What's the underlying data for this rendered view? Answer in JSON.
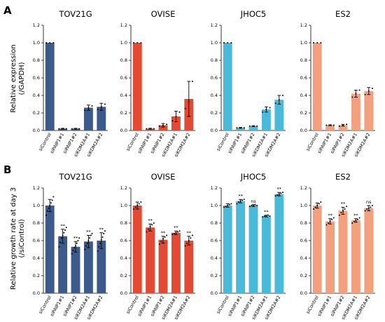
{
  "panels": [
    {
      "letter": "A",
      "ylabel_lines": [
        "Relative expression",
        "(/GAPDH)"
      ]
    },
    {
      "letter": "B",
      "ylabel_lines": [
        "Relative growth rate at day 3",
        "(/siControl)"
      ]
    }
  ],
  "chart_data": [
    {
      "type": "bar",
      "title": "TOV21G",
      "color": "#3d5a8c",
      "row": 0,
      "categories": [
        "siControl",
        "siPAIP1#1",
        "siPAIP1#2",
        "siKDM2A#1",
        "siKDM2A#2"
      ],
      "values": [
        1.0,
        0.02,
        0.02,
        0.26,
        0.27
      ],
      "errors": [
        0.0,
        0.005,
        0.005,
        0.03,
        0.04
      ],
      "points": [
        [
          1.0,
          1.0,
          1.0
        ],
        [
          0.02,
          0.02,
          0.02
        ],
        [
          0.02,
          0.02,
          0.02
        ],
        [
          0.23,
          0.26,
          0.28
        ],
        [
          0.24,
          0.27,
          0.3
        ]
      ],
      "annotations": [
        "",
        "",
        "",
        "",
        ""
      ],
      "ylim": [
        0,
        1.2
      ],
      "yticks": [
        "0.0",
        "0.2",
        "0.4",
        "0.6",
        "0.8",
        "1.0",
        "1.2"
      ]
    },
    {
      "type": "bar",
      "title": "OVISE",
      "color": "#e24a33",
      "row": 0,
      "categories": [
        "siControl",
        "siPAIP1#1",
        "siPAIP1#2",
        "siKDM2A#1",
        "siKDM2A#2"
      ],
      "values": [
        1.0,
        0.02,
        0.06,
        0.16,
        0.36
      ],
      "errors": [
        0.0,
        0.005,
        0.02,
        0.06,
        0.2
      ],
      "points": [
        [
          1.0,
          1.0,
          1.0
        ],
        [
          0.02,
          0.02,
          0.02
        ],
        [
          0.05,
          0.06,
          0.07
        ],
        [
          0.11,
          0.16,
          0.21
        ],
        [
          0.25,
          0.33,
          0.56
        ]
      ],
      "annotations": [
        "",
        "",
        "",
        "",
        ""
      ],
      "ylim": [
        0,
        1.2
      ],
      "yticks": [
        "0.0",
        "0.2",
        "0.4",
        "0.6",
        "0.8",
        "1.0",
        "1.2"
      ]
    },
    {
      "type": "bar",
      "title": "JHOC5",
      "color": "#4bbad8",
      "row": 0,
      "categories": [
        "siControl",
        "siPAIP1#1",
        "siPAIP1#2",
        "siKDM2A#1",
        "siKDM2A#2"
      ],
      "values": [
        1.0,
        0.03,
        0.05,
        0.24,
        0.35
      ],
      "errors": [
        0.0,
        0.005,
        0.005,
        0.03,
        0.05
      ],
      "points": [
        [
          1.0,
          1.0,
          1.0
        ],
        [
          0.03,
          0.03,
          0.03
        ],
        [
          0.05,
          0.05,
          0.05
        ],
        [
          0.21,
          0.24,
          0.26
        ],
        [
          0.31,
          0.35,
          0.4
        ]
      ],
      "annotations": [
        "",
        "",
        "",
        "",
        ""
      ],
      "ylim": [
        0,
        1.2
      ],
      "yticks": [
        "0.0",
        "0.2",
        "0.4",
        "0.6",
        "0.8",
        "1.0",
        "1.2"
      ]
    },
    {
      "type": "bar",
      "title": "ES2",
      "color": "#f2a07e",
      "row": 0,
      "categories": [
        "siControl",
        "siPAIP1#1",
        "siPAIP1#2",
        "siKDM2A#1",
        "siKDM2A#2"
      ],
      "values": [
        1.0,
        0.06,
        0.06,
        0.42,
        0.45
      ],
      "errors": [
        0.0,
        0.005,
        0.01,
        0.04,
        0.04
      ],
      "points": [
        [
          1.0,
          1.0,
          1.0
        ],
        [
          0.06,
          0.06,
          0.06
        ],
        [
          0.05,
          0.06,
          0.07
        ],
        [
          0.38,
          0.42,
          0.46
        ],
        [
          0.41,
          0.45,
          0.48
        ]
      ],
      "annotations": [
        "",
        "",
        "",
        "",
        ""
      ],
      "ylim": [
        0,
        1.2
      ],
      "yticks": [
        "0.0",
        "0.2",
        "0.4",
        "0.6",
        "0.8",
        "1.0",
        "1.2"
      ]
    },
    {
      "type": "bar",
      "title": "TOV21G",
      "color": "#3d5a8c",
      "row": 1,
      "categories": [
        "siControl",
        "siPAIP1#1",
        "siPAIP1#2",
        "siKDM2A#1",
        "siKDM2A#2"
      ],
      "values": [
        1.0,
        0.65,
        0.53,
        0.59,
        0.6
      ],
      "errors": [
        0.07,
        0.08,
        0.06,
        0.07,
        0.09
      ],
      "points": [
        [
          0.89,
          0.94,
          0.97,
          1.0,
          1.03,
          1.06,
          1.1
        ],
        [
          0.53,
          0.58,
          0.63,
          0.66,
          0.69,
          0.72,
          0.75
        ],
        [
          0.45,
          0.49,
          0.52,
          0.54,
          0.57,
          0.6,
          0.63
        ],
        [
          0.5,
          0.54,
          0.57,
          0.6,
          0.63,
          0.66,
          0.68
        ],
        [
          0.48,
          0.53,
          0.57,
          0.61,
          0.64,
          0.68,
          0.71
        ]
      ],
      "annotations": [
        "",
        "**",
        "**",
        "**",
        "**"
      ],
      "ylim": [
        0,
        1.2
      ],
      "yticks": [
        "0.0",
        "0.2",
        "0.4",
        "0.6",
        "0.8",
        "1.0",
        "1.2"
      ]
    },
    {
      "type": "bar",
      "title": "OVISE",
      "color": "#e24a33",
      "row": 1,
      "categories": [
        "siControl",
        "siPAIP1#1",
        "siPAIP1#2",
        "siKDM2A#1",
        "siKDM2A#2"
      ],
      "values": [
        1.0,
        0.75,
        0.61,
        0.69,
        0.6
      ],
      "errors": [
        0.04,
        0.04,
        0.04,
        0.02,
        0.05
      ],
      "points": [
        [
          0.96,
          0.98,
          1.0,
          1.02,
          1.04
        ],
        [
          0.7,
          0.73,
          0.76,
          0.78,
          0.8
        ],
        [
          0.56,
          0.59,
          0.62,
          0.64,
          0.66
        ],
        [
          0.67,
          0.68,
          0.69,
          0.7,
          0.71
        ],
        [
          0.54,
          0.57,
          0.6,
          0.63,
          0.66
        ]
      ],
      "annotations": [
        "",
        "**",
        "**",
        "**",
        "**"
      ],
      "ylim": [
        0,
        1.2
      ],
      "yticks": [
        "0.0",
        "0.2",
        "0.4",
        "0.6",
        "0.8",
        "1.0",
        "1.2"
      ]
    },
    {
      "type": "bar",
      "title": "JHOC5",
      "color": "#4bbad8",
      "row": 1,
      "categories": [
        "siControl",
        "siPAIP1#1",
        "siPAIP1#2",
        "siKDM2A#1",
        "siKDM2A#2"
      ],
      "values": [
        1.0,
        1.05,
        1.0,
        0.88,
        1.13
      ],
      "errors": [
        0.02,
        0.02,
        0.01,
        0.01,
        0.02
      ],
      "points": [
        [
          0.98,
          0.99,
          1.0,
          1.01,
          1.02
        ],
        [
          1.02,
          1.04,
          1.05,
          1.06,
          1.07
        ],
        [
          0.99,
          1.0,
          1.0,
          1.01,
          1.0
        ],
        [
          0.87,
          0.88,
          0.88,
          0.89,
          0.88
        ],
        [
          1.11,
          1.12,
          1.13,
          1.14,
          1.15
        ]
      ],
      "annotations": [
        "",
        "**",
        "ns",
        "**",
        "**"
      ],
      "ylim": [
        0,
        1.2
      ],
      "yticks": [
        "0.0",
        "0.2",
        "0.4",
        "0.6",
        "0.8",
        "1.0",
        "1.2"
      ]
    },
    {
      "type": "bar",
      "title": "ES2",
      "color": "#f2a07e",
      "row": 1,
      "categories": [
        "siControl",
        "siPAIP1#1",
        "siPAIP1#2",
        "siKDM2A#1",
        "siKDM2A#2"
      ],
      "values": [
        1.0,
        0.82,
        0.94,
        0.83,
        0.97
      ],
      "errors": [
        0.03,
        0.03,
        0.04,
        0.02,
        0.03
      ],
      "points": [
        [
          0.96,
          0.98,
          1.0,
          1.02,
          1.04
        ],
        [
          0.78,
          0.8,
          0.82,
          0.84,
          0.86
        ],
        [
          0.89,
          0.92,
          0.94,
          0.96,
          0.99
        ],
        [
          0.8,
          0.82,
          0.83,
          0.84,
          0.86
        ],
        [
          0.94,
          0.96,
          0.97,
          0.98,
          1.0
        ]
      ],
      "annotations": [
        "",
        "**",
        "**",
        "**",
        "ns"
      ],
      "ylim": [
        0,
        1.2
      ],
      "yticks": [
        "0.0",
        "0.2",
        "0.4",
        "0.6",
        "0.8",
        "1.0",
        "1.2"
      ]
    }
  ]
}
